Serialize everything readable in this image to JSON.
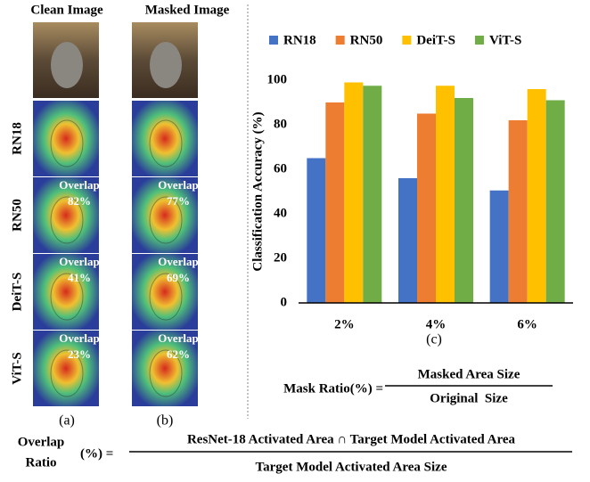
{
  "panels": {
    "columns": [
      "Clean Image",
      "Masked Image"
    ],
    "rows": [
      "RN18",
      "RN50",
      "DeiT-S",
      "ViT-S"
    ],
    "overlap_label": "Overlap",
    "overlaps": [
      {
        "clean": "82%",
        "masked": "77%"
      },
      {
        "clean": "41%",
        "masked": "69%"
      },
      {
        "clean": "23%",
        "masked": "62%"
      }
    ],
    "captions": [
      "(a)",
      "(b)"
    ]
  },
  "chart_data": {
    "type": "bar",
    "y_label": "Classification Accuracy (%)",
    "caption": "(c)",
    "categories": [
      "2%",
      "4%",
      "6%"
    ],
    "series": [
      {
        "name": "RN18",
        "color": "#4472c4",
        "values": [
          65,
          56,
          50.5
        ]
      },
      {
        "name": "RN50",
        "color": "#ed7d31",
        "values": [
          90,
          85,
          82
        ]
      },
      {
        "name": "DeiT-S",
        "color": "#ffc000",
        "values": [
          99,
          97.5,
          96
        ]
      },
      {
        "name": "ViT-S",
        "color": "#70ad47",
        "values": [
          97.5,
          92,
          91
        ]
      }
    ],
    "ylim": [
      0,
      100
    ],
    "yticks": [
      0,
      20,
      40,
      60,
      80,
      100
    ],
    "grid": false,
    "legend": "top"
  },
  "formulas": {
    "mask_ratio": {
      "lhs": "Mask Ratio(%) =",
      "numerator": "Masked Area Size",
      "denominator": "Original  Size"
    },
    "overlap_ratio": {
      "lhs_top": "Overlap",
      "lhs_bottom": "Ratio",
      "lhs_unit": "(%) =",
      "numerator": "ResNet-18 Activated Area ∩ Target Model Activated Area",
      "denominator": "Target Model Activated Area Size"
    }
  }
}
